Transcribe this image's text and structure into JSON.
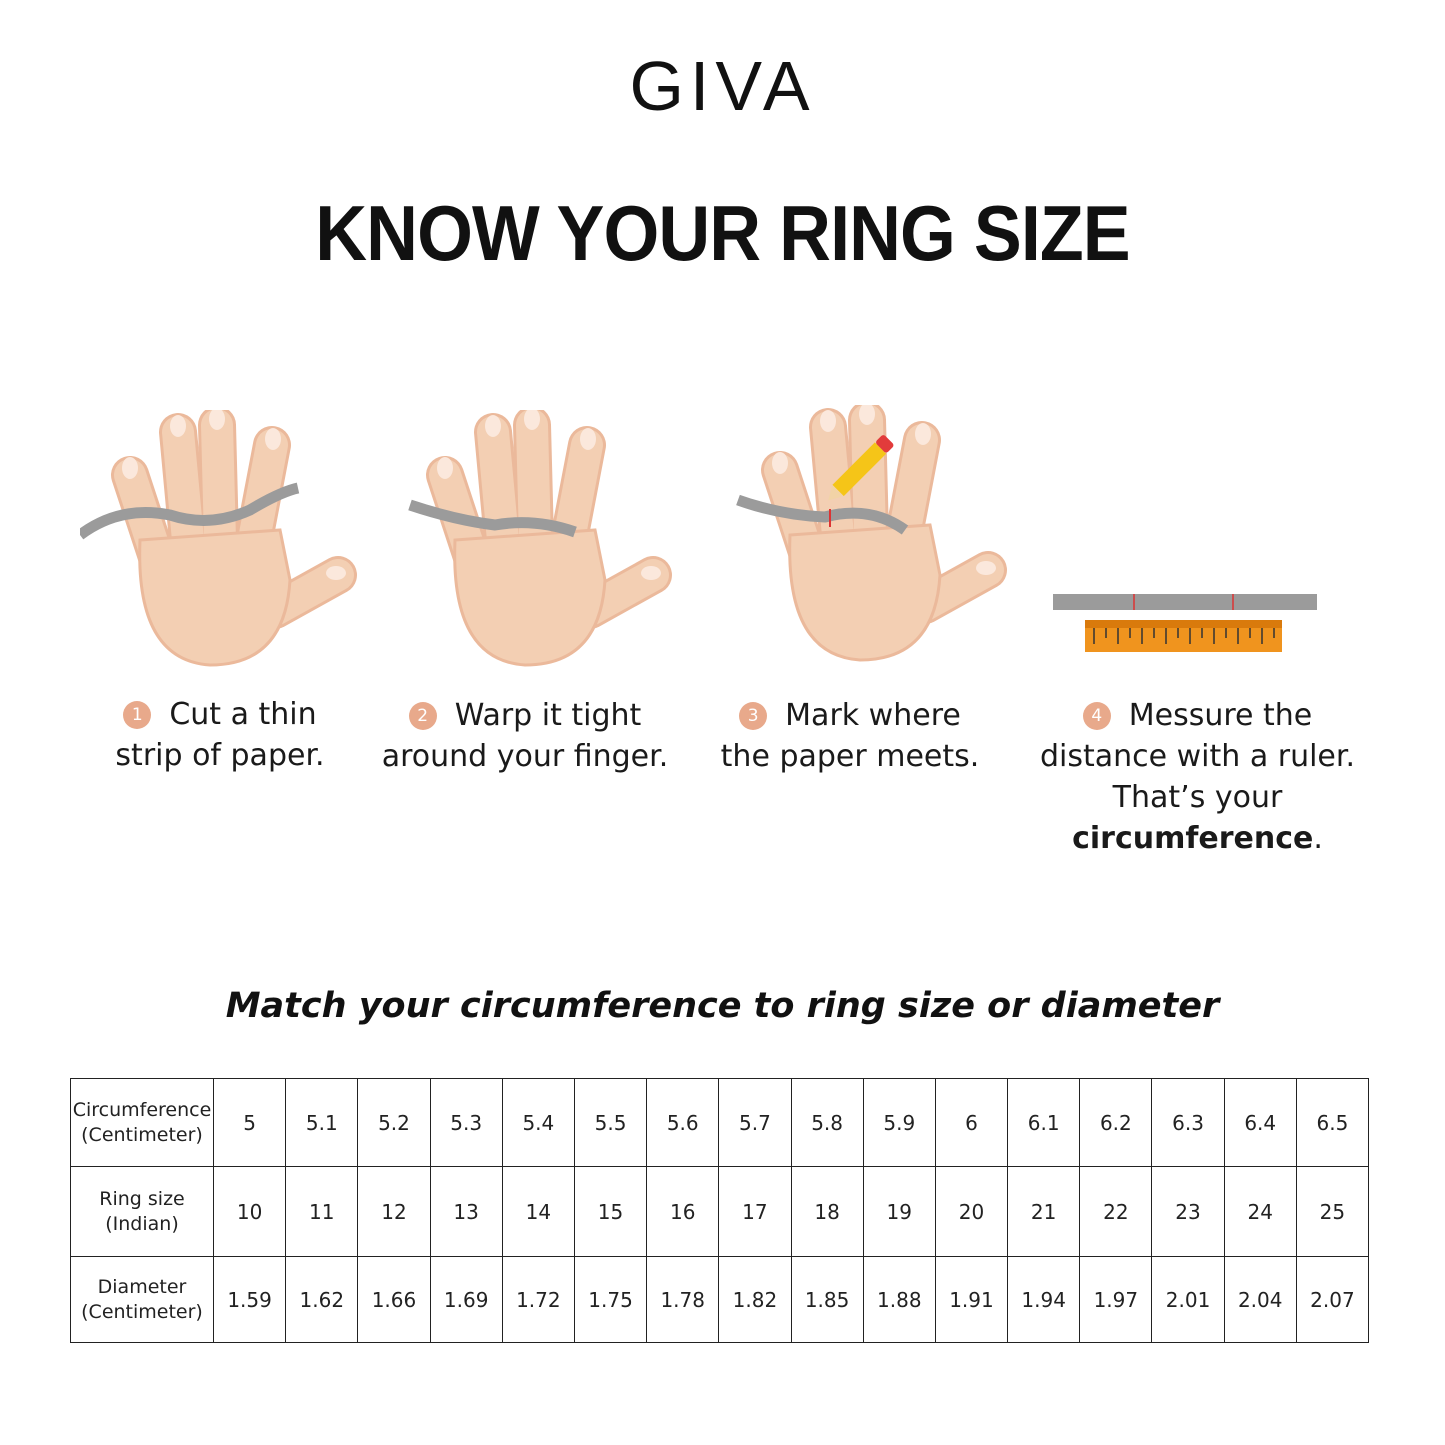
{
  "brand": {
    "logo": "GIVA"
  },
  "title": "KNOW YOUR RING SIZE",
  "steps": [
    {
      "number": "1",
      "line1": "Cut a thin",
      "line2": "strip of paper."
    },
    {
      "number": "2",
      "line1": "Warp it tight",
      "line2": "around your finger."
    },
    {
      "number": "3",
      "line1": "Mark where",
      "line2": "the paper meets."
    },
    {
      "number": "4",
      "line1": "Messure the",
      "line2": "distance with a ruler.",
      "line3_prefix": "That’s your ",
      "line3_bold": "circumference",
      "line3_suffix": "."
    }
  ],
  "subtitle": "Match your circumference to ring size or diameter",
  "table": {
    "rows": [
      {
        "label1": "Circumference",
        "label2": "(Centimeter)",
        "values": [
          "5",
          "5.1",
          "5.2",
          "5.3",
          "5.4",
          "5.5",
          "5.6",
          "5.7",
          "5.8",
          "5.9",
          "6",
          "6.1",
          "6.2",
          "6.3",
          "6.4",
          "6.5"
        ]
      },
      {
        "label1": "Ring size",
        "label2": "(Indian)",
        "values": [
          "10",
          "11",
          "12",
          "13",
          "14",
          "15",
          "16",
          "17",
          "18",
          "19",
          "20",
          "21",
          "22",
          "23",
          "24",
          "25"
        ]
      },
      {
        "label1": "Diameter",
        "label2": "(Centimeter)",
        "values": [
          "1.59",
          "1.62",
          "1.66",
          "1.69",
          "1.72",
          "1.75",
          "1.78",
          "1.82",
          "1.85",
          "1.88",
          "1.91",
          "1.94",
          "1.97",
          "2.01",
          "2.04",
          "2.07"
        ]
      }
    ]
  },
  "colors": {
    "skin": "#f3cfb3",
    "step_badge": "#e8a98b",
    "ruler": "#f0941e",
    "paper_strip": "#9b9b9b"
  }
}
